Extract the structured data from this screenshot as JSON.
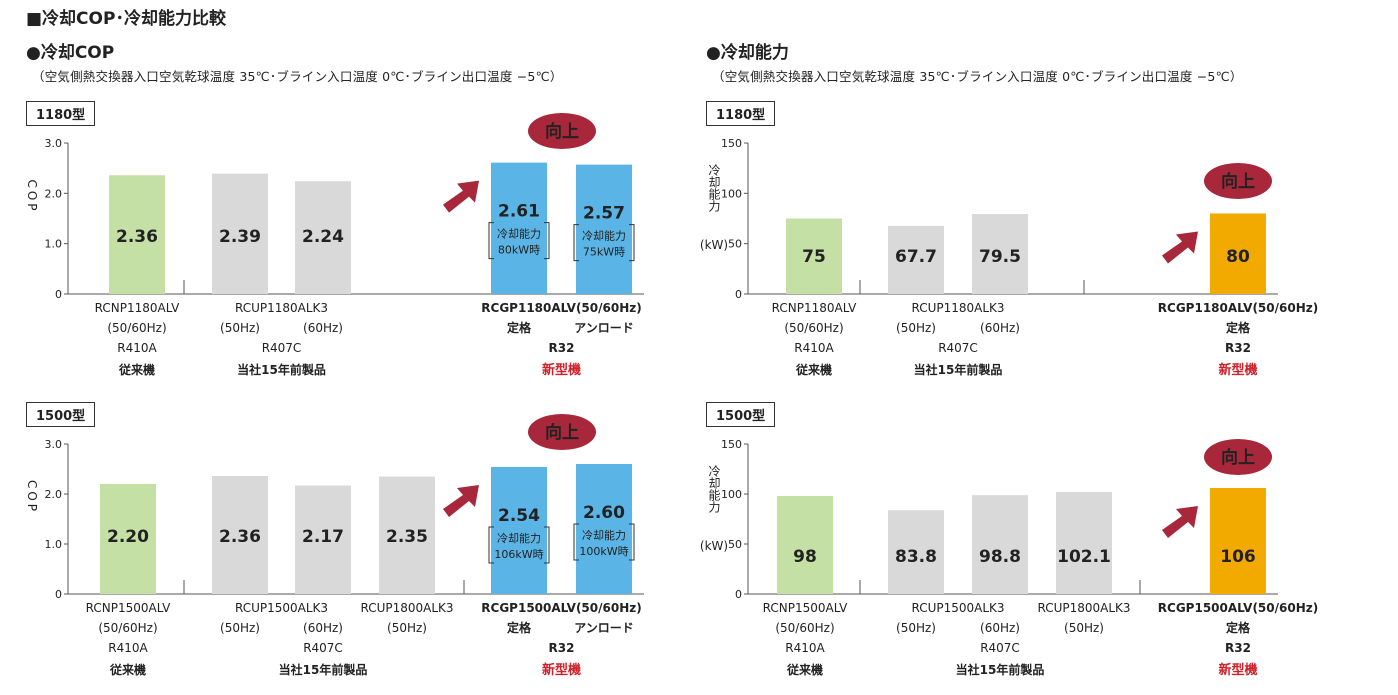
{
  "header": "■冷却COP･冷却能力比較",
  "left_title": "●冷却COP",
  "right_title": "●冷却能力",
  "condition": "（空気側熱交換器入口空気乾球温度 35℃･ブライン入口温度 0℃･ブライン出口温度 −5℃）",
  "up_label": "向上",
  "colors": {
    "green": "#c5e0a5",
    "gray": "#d9d9d9",
    "blue": "#5ab4e5",
    "orange": "#f2a900",
    "arrow": "#a8273a",
    "red": "#d0202a"
  },
  "chart_data": [
    {
      "id": "cop1180",
      "type": "bar",
      "box": "1180型",
      "ylabel": "COP",
      "ylim": [
        0,
        3.0
      ],
      "yticks": [
        "0",
        "1.0",
        "2.0",
        "3.0"
      ],
      "bars": [
        {
          "value": 2.36,
          "label": "2.36",
          "color": "green"
        },
        {
          "value": 2.39,
          "label": "2.39",
          "color": "gray"
        },
        {
          "value": 2.24,
          "label": "2.24",
          "color": "gray"
        },
        {
          "value": 2.61,
          "label": "2.61",
          "color": "blue",
          "note": [
            "冷却能力",
            "80kW時"
          ]
        },
        {
          "value": 2.57,
          "label": "2.57",
          "color": "blue",
          "note": [
            "冷却能力",
            "75kW時"
          ]
        }
      ],
      "xlabels": [
        {
          "text": "RCNP1180ALV",
          "bar": 0,
          "row": 0,
          "style": "n"
        },
        {
          "text": "(50/60Hz)",
          "bar": 0,
          "row": 1,
          "style": "n"
        },
        {
          "text": "R410A",
          "bar": 0,
          "row": 2,
          "style": "n"
        },
        {
          "text": "従来機",
          "bar": 0,
          "row": 3,
          "style": "b"
        },
        {
          "text": "RCUP1180ALK3",
          "bar": 1.5,
          "row": 0,
          "style": "n"
        },
        {
          "text": "(50Hz)",
          "bar": 1,
          "row": 1,
          "style": "n"
        },
        {
          "text": "(60Hz)",
          "bar": 2,
          "row": 1,
          "style": "n"
        },
        {
          "text": "R407C",
          "bar": 1.5,
          "row": 2,
          "style": "n"
        },
        {
          "text": "当社15年前製品",
          "bar": 1.5,
          "row": 3,
          "style": "b"
        },
        {
          "text": "RCGP1180ALV(50/60Hz)",
          "bar": 3.5,
          "row": 0,
          "style": "b"
        },
        {
          "text": "定格",
          "bar": 3,
          "row": 1,
          "style": "b"
        },
        {
          "text": "アンロード",
          "bar": 4,
          "row": 1,
          "style": "b"
        },
        {
          "text": "R32",
          "bar": 3.5,
          "row": 2,
          "style": "b"
        },
        {
          "text": "新型機",
          "bar": 3.5,
          "row": 3,
          "style": "r"
        }
      ]
    },
    {
      "id": "cop1500",
      "type": "bar",
      "box": "1500型",
      "ylabel": "COP",
      "ylim": [
        0,
        3.0
      ],
      "yticks": [
        "0",
        "1.0",
        "2.0",
        "3.0"
      ],
      "bars": [
        {
          "value": 2.2,
          "label": "2.20",
          "color": "green"
        },
        {
          "value": 2.36,
          "label": "2.36",
          "color": "gray"
        },
        {
          "value": 2.17,
          "label": "2.17",
          "color": "gray"
        },
        {
          "value": 2.35,
          "label": "2.35",
          "color": "gray"
        },
        {
          "value": 2.54,
          "label": "2.54",
          "color": "blue",
          "note": [
            "冷却能力",
            "106kW時"
          ]
        },
        {
          "value": 2.6,
          "label": "2.60",
          "color": "blue",
          "note": [
            "冷却能力",
            "100kW時"
          ]
        }
      ],
      "xlabels": [
        {
          "text": "RCNP1500ALV",
          "bar": 0,
          "row": 0,
          "style": "n"
        },
        {
          "text": "(50/60Hz)",
          "bar": 0,
          "row": 1,
          "style": "n"
        },
        {
          "text": "R410A",
          "bar": 0,
          "row": 2,
          "style": "n"
        },
        {
          "text": "従来機",
          "bar": 0,
          "row": 3,
          "style": "b"
        },
        {
          "text": "RCUP1500ALK3",
          "bar": 1.5,
          "row": 0,
          "style": "n"
        },
        {
          "text": "RCUP1800ALK3",
          "bar": 3,
          "row": 0,
          "style": "n"
        },
        {
          "text": "(50Hz)",
          "bar": 1,
          "row": 1,
          "style": "n"
        },
        {
          "text": "(60Hz)",
          "bar": 2,
          "row": 1,
          "style": "n"
        },
        {
          "text": "(50Hz)",
          "bar": 3,
          "row": 1,
          "style": "n"
        },
        {
          "text": "R407C",
          "bar": 2,
          "row": 2,
          "style": "n"
        },
        {
          "text": "当社15年前製品",
          "bar": 2,
          "row": 3,
          "style": "b"
        },
        {
          "text": "RCGP1500ALV(50/60Hz)",
          "bar": 4.5,
          "row": 0,
          "style": "b"
        },
        {
          "text": "定格",
          "bar": 4,
          "row": 1,
          "style": "b"
        },
        {
          "text": "アンロード",
          "bar": 5,
          "row": 1,
          "style": "b"
        },
        {
          "text": "R32",
          "bar": 4.5,
          "row": 2,
          "style": "b"
        },
        {
          "text": "新型機",
          "bar": 4.5,
          "row": 3,
          "style": "r"
        }
      ]
    },
    {
      "id": "cap1180",
      "type": "bar",
      "box": "1180型",
      "ylabel": "冷却能力",
      "yunit": "(kW)",
      "ylim": [
        0,
        150
      ],
      "yticks": [
        "0",
        "50",
        "100",
        "150"
      ],
      "bars": [
        {
          "value": 75,
          "label": "75",
          "color": "green"
        },
        {
          "value": 67.7,
          "label": "67.7",
          "color": "gray"
        },
        {
          "value": 79.5,
          "label": "79.5",
          "color": "gray"
        },
        {
          "value": 80,
          "label": "80",
          "color": "orange"
        }
      ],
      "xlabels": [
        {
          "text": "RCNP1180ALV",
          "bar": 0,
          "row": 0,
          "style": "n"
        },
        {
          "text": "(50/60Hz)",
          "bar": 0,
          "row": 1,
          "style": "n"
        },
        {
          "text": "R410A",
          "bar": 0,
          "row": 2,
          "style": "n"
        },
        {
          "text": "従来機",
          "bar": 0,
          "row": 3,
          "style": "b"
        },
        {
          "text": "RCUP1180ALK3",
          "bar": 1.5,
          "row": 0,
          "style": "n"
        },
        {
          "text": "(50Hz)",
          "bar": 1,
          "row": 1,
          "style": "n"
        },
        {
          "text": "(60Hz)",
          "bar": 2,
          "row": 1,
          "style": "n"
        },
        {
          "text": "R407C",
          "bar": 1.5,
          "row": 2,
          "style": "n"
        },
        {
          "text": "当社15年前製品",
          "bar": 1.5,
          "row": 3,
          "style": "b"
        },
        {
          "text": "RCGP1180ALV(50/60Hz)",
          "bar": 3,
          "row": 0,
          "style": "b"
        },
        {
          "text": "定格",
          "bar": 3,
          "row": 1,
          "style": "b"
        },
        {
          "text": "R32",
          "bar": 3,
          "row": 2,
          "style": "b"
        },
        {
          "text": "新型機",
          "bar": 3,
          "row": 3,
          "style": "r"
        }
      ]
    },
    {
      "id": "cap1500",
      "type": "bar",
      "box": "1500型",
      "ylabel": "冷却能力",
      "yunit": "(kW)",
      "ylim": [
        0,
        150
      ],
      "yticks": [
        "0",
        "50",
        "100",
        "150"
      ],
      "bars": [
        {
          "value": 98,
          "label": "98",
          "color": "green"
        },
        {
          "value": 83.8,
          "label": "83.8",
          "color": "gray"
        },
        {
          "value": 98.8,
          "label": "98.8",
          "color": "gray"
        },
        {
          "value": 102.1,
          "label": "102.1",
          "color": "gray"
        },
        {
          "value": 106,
          "label": "106",
          "color": "orange"
        }
      ],
      "xlabels": [
        {
          "text": "RCNP1500ALV",
          "bar": 0,
          "row": 0,
          "style": "n"
        },
        {
          "text": "(50/60Hz)",
          "bar": 0,
          "row": 1,
          "style": "n"
        },
        {
          "text": "R410A",
          "bar": 0,
          "row": 2,
          "style": "n"
        },
        {
          "text": "従来機",
          "bar": 0,
          "row": 3,
          "style": "b"
        },
        {
          "text": "RCUP1500ALK3",
          "bar": 1.5,
          "row": 0,
          "style": "n"
        },
        {
          "text": "RCUP1800ALK3",
          "bar": 3,
          "row": 0,
          "style": "n"
        },
        {
          "text": "(50Hz)",
          "bar": 1,
          "row": 1,
          "style": "n"
        },
        {
          "text": "(60Hz)",
          "bar": 2,
          "row": 1,
          "style": "n"
        },
        {
          "text": "(50Hz)",
          "bar": 3,
          "row": 1,
          "style": "n"
        },
        {
          "text": "R407C",
          "bar": 2,
          "row": 2,
          "style": "n"
        },
        {
          "text": "当社15年前製品",
          "bar": 2,
          "row": 3,
          "style": "b"
        },
        {
          "text": "RCGP1500ALV(50/60Hz)",
          "bar": 4,
          "row": 0,
          "style": "b"
        },
        {
          "text": "定格",
          "bar": 4,
          "row": 1,
          "style": "b"
        },
        {
          "text": "R32",
          "bar": 4,
          "row": 2,
          "style": "b"
        },
        {
          "text": "新型機",
          "bar": 4,
          "row": 3,
          "style": "r"
        }
      ]
    }
  ]
}
